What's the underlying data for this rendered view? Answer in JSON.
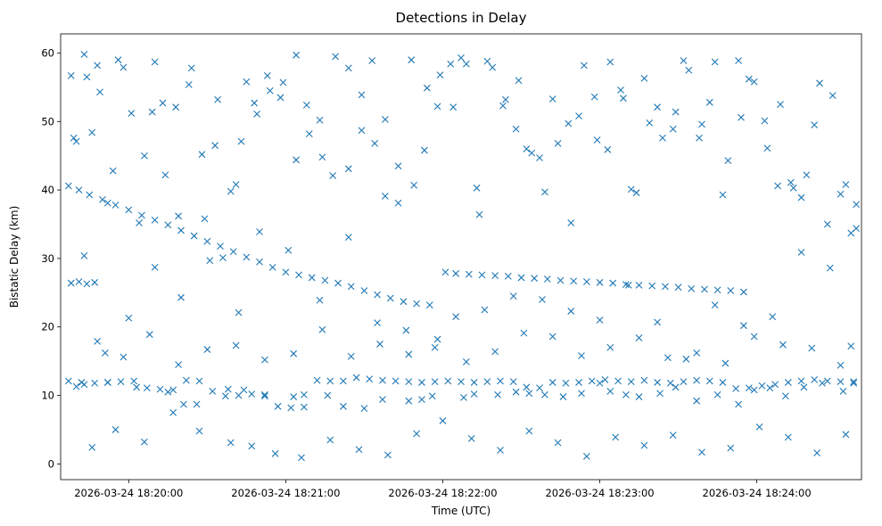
{
  "chart_data": {
    "type": "scatter",
    "title": "Detections in Delay",
    "xlabel": "Time (UTC)",
    "ylabel": "Bistatic Delay (km)",
    "xlim": [
      "2026-03-24 18:19:34",
      "2026-03-24 18:24:40"
    ],
    "ylim": [
      -2.3,
      62.8
    ],
    "x_ticks": [
      "2026-03-24 18:20:00",
      "2026-03-24 18:21:00",
      "2026-03-24 18:22:00",
      "2026-03-24 18:23:00",
      "2026-03-24 18:24:00"
    ],
    "y_ticks": [
      "0",
      "10",
      "20",
      "30",
      "40",
      "50",
      "60"
    ],
    "marker": "x",
    "color": "#1f77b4",
    "grid": false,
    "series": [
      {
        "x": [
          "18:19:37",
          "18:19:41",
          "18:19:45",
          "18:19:50",
          "18:19:55",
          "18:20:00",
          "18:20:05",
          "18:20:10",
          "18:20:15",
          "18:20:20",
          "18:20:25",
          "18:20:30",
          "18:20:35",
          "18:20:40",
          "18:20:45",
          "18:20:50",
          "18:20:55",
          "18:21:00",
          "18:21:05",
          "18:21:10",
          "18:21:15",
          "18:21:20",
          "18:21:25",
          "18:21:30",
          "18:21:35",
          "18:21:40",
          "18:21:45",
          "18:21:50",
          "18:21:55",
          "18:22:01",
          "18:22:05",
          "18:22:10",
          "18:22:15",
          "18:22:20",
          "18:22:25",
          "18:22:30",
          "18:22:35",
          "18:22:40",
          "18:22:45",
          "18:22:50",
          "18:22:55",
          "18:23:00",
          "18:23:05",
          "18:23:10",
          "18:23:15",
          "18:23:20",
          "18:23:25",
          "18:23:30",
          "18:23:35",
          "18:23:40",
          "18:23:45",
          "18:23:50",
          "18:23:55",
          "18:19:38",
          "18:19:41",
          "18:19:44",
          "18:19:47",
          "18:19:37",
          "18:19:42",
          "18:19:47",
          "18:19:52",
          "18:19:57",
          "18:20:02",
          "18:20:07",
          "18:20:12",
          "18:20:17",
          "18:20:22",
          "18:20:27",
          "18:20:32",
          "18:20:37",
          "18:20:42",
          "18:20:47",
          "18:20:52",
          "18:20:57",
          "18:21:02",
          "18:21:07",
          "18:21:12",
          "18:21:17",
          "18:21:22",
          "18:21:27",
          "18:21:32",
          "18:21:37",
          "18:21:42",
          "18:21:47",
          "18:21:52",
          "18:21:57",
          "18:22:02",
          "18:22:07",
          "18:22:12",
          "18:22:17",
          "18:22:22",
          "18:22:27",
          "18:22:32",
          "18:22:37",
          "18:22:42",
          "18:22:47",
          "18:22:52",
          "18:22:57",
          "18:23:02",
          "18:23:07",
          "18:23:12",
          "18:23:17",
          "18:23:22",
          "18:23:27",
          "18:23:32",
          "18:23:37",
          "18:23:42",
          "18:23:47",
          "18:23:52",
          "18:23:57",
          "18:24:02",
          "18:24:07",
          "18:24:12",
          "18:24:17",
          "18:24:22",
          "18:24:27",
          "18:24:32",
          "18:24:37",
          "18:19:40",
          "18:19:43",
          "18:19:52",
          "18:20:03",
          "18:20:15",
          "18:20:21",
          "18:20:26",
          "18:20:38",
          "18:20:44",
          "18:20:52",
          "18:21:03",
          "18:21:07",
          "18:21:16",
          "18:21:22",
          "18:21:30",
          "18:21:37",
          "18:21:47",
          "18:21:52",
          "18:21:56",
          "18:22:08",
          "18:22:12",
          "18:22:21",
          "18:22:28",
          "18:22:33",
          "18:22:39",
          "18:22:46",
          "18:22:53",
          "18:23:00",
          "18:23:04",
          "18:23:10",
          "18:23:15",
          "18:23:23",
          "18:23:29",
          "18:23:37",
          "18:23:45",
          "18:23:53",
          "18:23:59",
          "18:24:05",
          "18:24:11",
          "18:24:18",
          "18:24:25",
          "18:24:33",
          "18:24:37",
          "18:19:38",
          "18:19:40",
          "18:19:43",
          "18:19:46",
          "18:19:49",
          "18:19:52",
          "18:19:56",
          "18:20:01",
          "18:20:06",
          "18:20:10",
          "18:20:14",
          "18:20:19",
          "18:20:23",
          "18:20:29",
          "18:20:33",
          "18:20:36",
          "18:20:41",
          "18:20:45",
          "18:20:48",
          "18:20:53",
          "18:20:59",
          "18:21:04",
          "18:21:09",
          "18:21:14",
          "18:21:19",
          "18:21:24",
          "18:21:29",
          "18:21:33",
          "18:21:38",
          "18:21:43",
          "18:21:48",
          "18:21:53",
          "18:21:58",
          "18:22:03",
          "18:22:07",
          "18:22:13",
          "18:22:17",
          "18:22:23",
          "18:22:28",
          "18:22:32",
          "18:22:37",
          "18:22:42",
          "18:22:48",
          "18:22:52",
          "18:22:58",
          "18:23:03",
          "18:23:08",
          "18:23:12",
          "18:23:17",
          "18:23:22",
          "18:23:28",
          "18:23:32",
          "18:23:38",
          "18:23:42",
          "18:23:47",
          "18:23:53",
          "18:23:57",
          "18:24:03",
          "18:24:08",
          "18:24:13",
          "18:24:17",
          "18:24:22",
          "18:24:27",
          "18:24:32",
          "18:24:36",
          "18:24:38",
          "18:19:39",
          "18:19:44",
          "18:19:48",
          "18:19:54",
          "18:19:58",
          "18:20:04",
          "18:20:09",
          "18:20:13",
          "18:20:18",
          "18:20:24",
          "18:20:28",
          "18:20:34",
          "18:20:39",
          "18:20:43",
          "18:20:49",
          "18:20:54",
          "18:20:58",
          "18:21:04",
          "18:21:08",
          "18:21:13",
          "18:21:18",
          "18:21:24",
          "18:21:29",
          "18:21:34",
          "18:21:38",
          "18:21:43",
          "18:21:49",
          "18:21:54",
          "18:21:59",
          "18:22:04",
          "18:22:09",
          "18:22:14",
          "18:22:19",
          "18:22:24",
          "18:22:29",
          "18:22:34",
          "18:22:39",
          "18:22:44",
          "18:22:49",
          "18:22:54",
          "18:22:59",
          "18:23:04",
          "18:23:09",
          "18:23:14",
          "18:23:19",
          "18:23:24",
          "18:23:29",
          "18:23:34",
          "18:23:39",
          "18:23:44",
          "18:23:49",
          "18:23:54",
          "18:23:59",
          "18:24:04",
          "18:24:09",
          "18:24:14",
          "18:24:19",
          "18:24:24",
          "18:24:29",
          "18:24:34",
          "18:24:38",
          "18:19:43",
          "18:19:51",
          "18:20:00",
          "18:20:10",
          "18:20:20",
          "18:20:31",
          "18:20:42",
          "18:20:50",
          "18:21:01",
          "18:21:13",
          "18:21:24",
          "18:21:35",
          "18:21:46",
          "18:21:57",
          "18:22:05",
          "18:22:16",
          "18:22:27",
          "18:22:38",
          "18:22:49",
          "18:23:00",
          "18:23:11",
          "18:23:22",
          "18:23:33",
          "18:23:44",
          "18:23:55",
          "18:24:06",
          "18:24:17",
          "18:24:28",
          "18:24:36",
          "18:19:46",
          "18:19:55",
          "18:20:06",
          "18:20:17",
          "18:20:27",
          "18:20:39",
          "18:20:47",
          "18:20:56",
          "18:21:06",
          "18:21:17",
          "18:21:28",
          "18:21:39",
          "18:21:50",
          "18:22:00",
          "18:22:11",
          "18:22:22",
          "18:22:33",
          "18:22:44",
          "18:22:55",
          "18:23:06",
          "18:23:17",
          "18:23:28",
          "18:23:39",
          "18:23:50",
          "18:24:01",
          "18:24:12",
          "18:24:23",
          "18:24:34",
          "18:19:48",
          "18:19:58",
          "18:20:08",
          "18:20:19",
          "18:20:30",
          "18:20:41",
          "18:20:52",
          "18:21:03",
          "18:21:14",
          "18:21:25",
          "18:21:36",
          "18:21:47",
          "18:21:58",
          "18:22:09",
          "18:22:20",
          "18:22:31",
          "18:22:42",
          "18:22:53",
          "18:23:04",
          "18:23:15",
          "18:23:26",
          "18:23:37",
          "18:23:48",
          "18:23:59",
          "18:24:10",
          "18:24:21",
          "18:24:32"
        ],
        "y": [
          40.6,
          40.0,
          39.3,
          38.6,
          37.8,
          37.1,
          36.3,
          35.6,
          34.9,
          34.1,
          33.3,
          32.5,
          31.8,
          31.0,
          30.2,
          29.5,
          28.7,
          28.0,
          27.6,
          27.2,
          26.8,
          26.4,
          25.9,
          25.3,
          24.7,
          24.2,
          23.7,
          23.4,
          23.2,
          28.0,
          27.8,
          27.7,
          27.6,
          27.5,
          27.4,
          27.2,
          27.1,
          27.0,
          26.8,
          26.7,
          26.6,
          26.5,
          26.4,
          26.2,
          26.1,
          26.0,
          25.9,
          25.8,
          25.6,
          25.5,
          25.4,
          25.3,
          25.1,
          26.4,
          26.6,
          26.3,
          26.5,
          12.1,
          11.9,
          11.8,
          11.9,
          12.0,
          12.1,
          11.1,
          10.9,
          10.8,
          12.2,
          12.1,
          10.6,
          9.9,
          10.0,
          10.2,
          9.9,
          8.4,
          8.2,
          8.3,
          12.2,
          12.1,
          12.1,
          12.6,
          12.4,
          12.2,
          12.1,
          12.0,
          11.9,
          12.0,
          12.1,
          12.0,
          11.9,
          12.0,
          12.1,
          12.0,
          11.2,
          11.1,
          11.9,
          11.8,
          11.9,
          12.1,
          12.3,
          12.1,
          12.0,
          12.2,
          11.9,
          11.8,
          12.0,
          12.2,
          12.1,
          11.9,
          11.0,
          11.1,
          11.4,
          11.6,
          11.9,
          12.1,
          12.3,
          12.1,
          12.0,
          11.8,
          11.3,
          11.6,
          11.9,
          11.2,
          10.5,
          8.7,
          8.7,
          10.9,
          10.8,
          10.1,
          9.8,
          10.1,
          10.0,
          8.4,
          8.1,
          9.4,
          9.2,
          9.4,
          9.9,
          9.7,
          10.2,
          10.1,
          10.5,
          10.3,
          10.1,
          9.8,
          10.3,
          11.8,
          10.6,
          10.1,
          9.8,
          10.3,
          11.2,
          9.2,
          10.1,
          8.7,
          10.8,
          11.1,
          9.9,
          11.2,
          11.8,
          10.6,
          12.0,
          56.7,
          47.1,
          59.8,
          48.4,
          54.3,
          38.1,
          59.0,
          51.2,
          45.0,
          58.7,
          42.2,
          36.2,
          55.4,
          35.8,
          46.5,
          30.1,
          40.8,
          55.8,
          52.7,
          56.7,
          55.7,
          44.4,
          48.2,
          44.8,
          59.5,
          57.8,
          53.9,
          58.9,
          50.3,
          43.5,
          59.0,
          45.8,
          52.2,
          58.4,
          59.3,
          40.3,
          58.8,
          52.3,
          48.9,
          46.0,
          44.7,
          53.3,
          49.7,
          50.8,
          53.6,
          45.9,
          54.6,
          40.1,
          56.3,
          52.1,
          48.9,
          58.9,
          47.6,
          52.8,
          39.3,
          58.9,
          56.2,
          50.1,
          40.6,
          41.1,
          38.9,
          49.5,
          35.0,
          39.4,
          33.7,
          37.9,
          47.6,
          56.5,
          58.2,
          42.8,
          57.9,
          35.2,
          51.4,
          52.7,
          52.1,
          57.8,
          45.2,
          53.2,
          39.8,
          47.1,
          51.1,
          54.5,
          53.5,
          59.7,
          52.4,
          50.2,
          42.1,
          43.1,
          48.7,
          46.8,
          39.1,
          38.1,
          40.7,
          54.9,
          56.8,
          52.1,
          58.4,
          36.4,
          57.9,
          53.2,
          56.0,
          45.4,
          39.7,
          46.8,
          35.2,
          58.2,
          47.3,
          58.7,
          53.4,
          39.6,
          49.8,
          47.6,
          51.4,
          57.5,
          49.6,
          58.7,
          44.3,
          50.6,
          55.8,
          46.1,
          52.5,
          40.3,
          42.2,
          55.6,
          53.8,
          40.8,
          34.4,
          30.4,
          16.2,
          21.3,
          28.7,
          24.3,
          29.7,
          22.1,
          33.9,
          31.2,
          23.9,
          33.1,
          20.6,
          19.5,
          17.0,
          21.5,
          22.5,
          24.5,
          24.0,
          22.3,
          21.0,
          26.1,
          20.7,
          15.3,
          23.2,
          20.2,
          21.5,
          30.9,
          28.6,
          17.2,
          2.4,
          5.0,
          3.2,
          7.5,
          4.8,
          3.1,
          2.6,
          1.5,
          0.9,
          3.5,
          2.1,
          1.3,
          4.4,
          6.3,
          3.7,
          2.0,
          4.8,
          3.1,
          1.1,
          3.9,
          2.7,
          4.2,
          1.7,
          2.3,
          5.4,
          3.9,
          1.6,
          4.3,
          17.9,
          15.6,
          18.9,
          14.5,
          16.7,
          17.3,
          15.2,
          16.1,
          19.6,
          15.7,
          17.5,
          16.0,
          18.2,
          14.9,
          16.4,
          19.1,
          18.6,
          15.8,
          17.0,
          18.4,
          15.5,
          16.2,
          14.7,
          18.6,
          17.4,
          16.9,
          14.4
        ]
      }
    ]
  }
}
